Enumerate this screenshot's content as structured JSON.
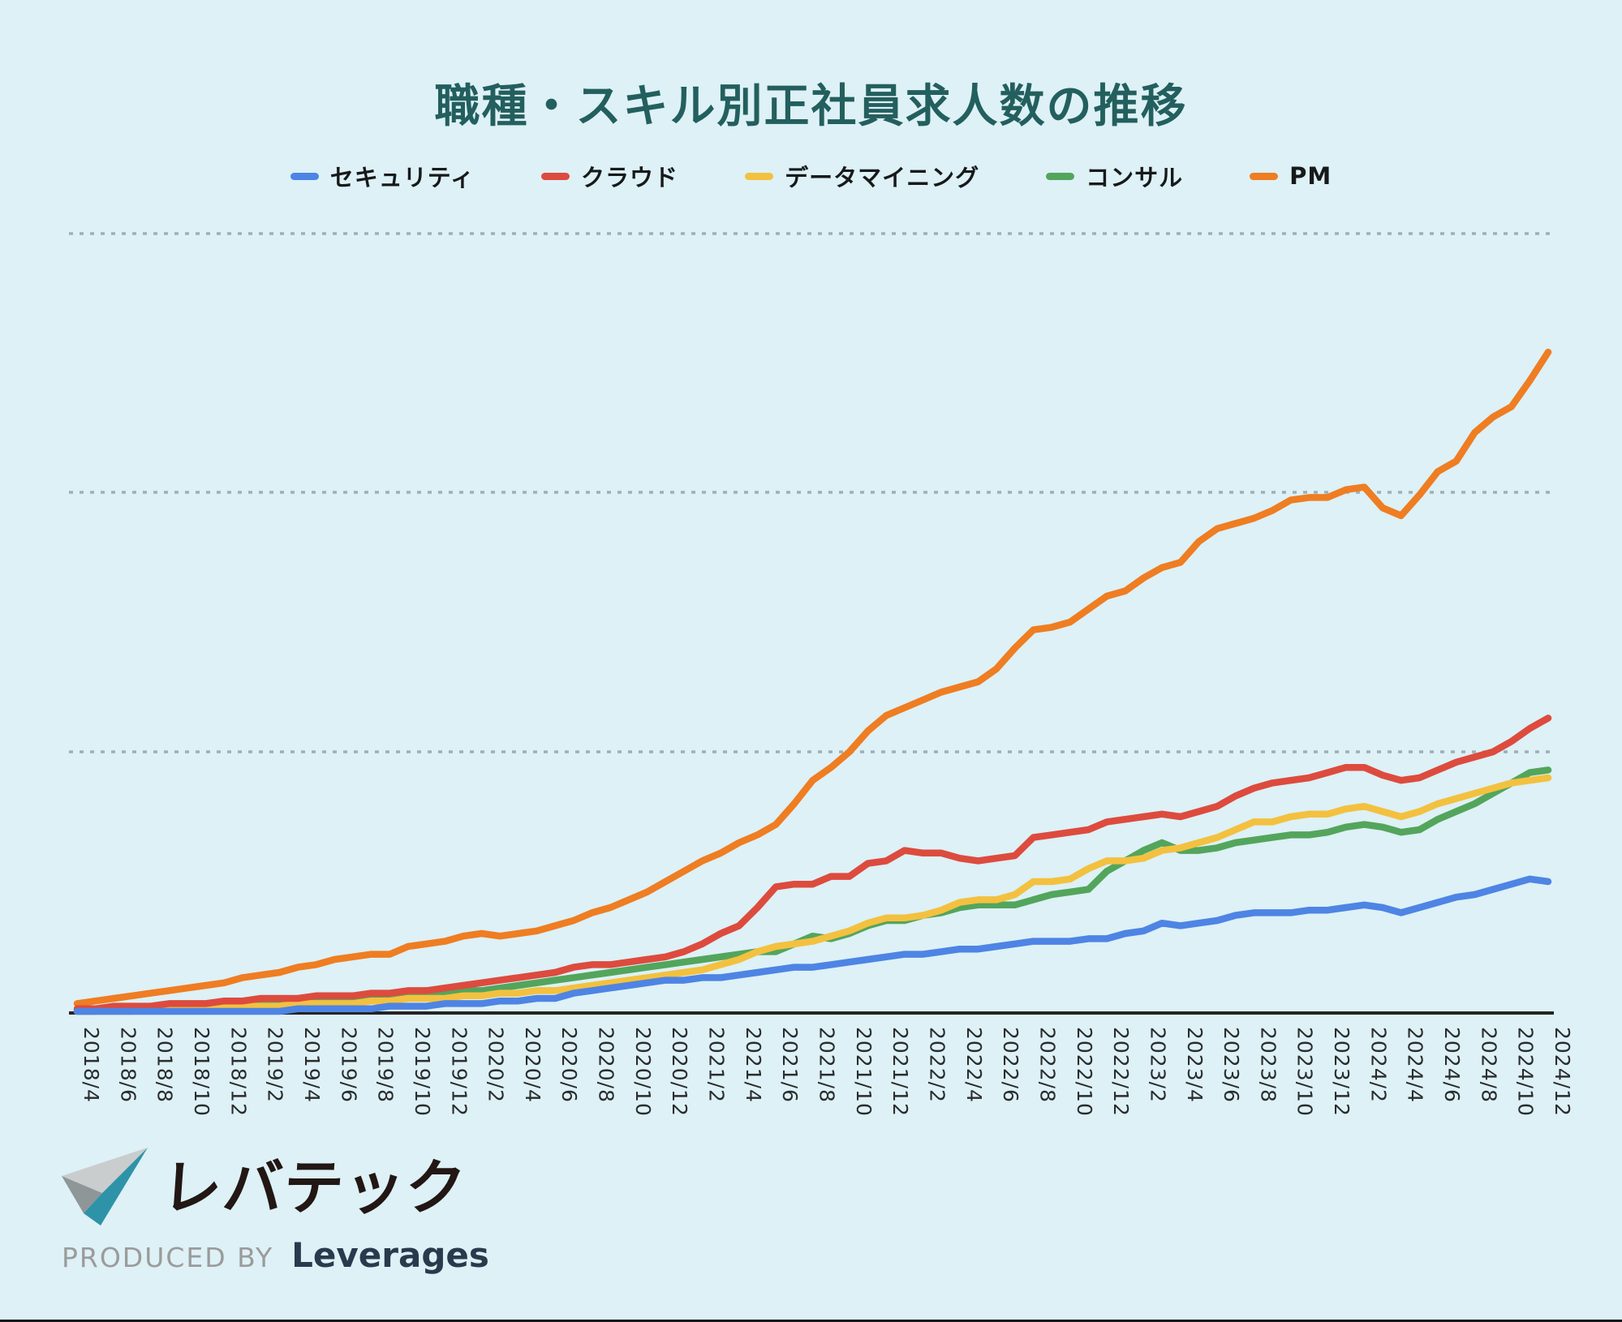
{
  "page": {
    "background": "#ddf1f6"
  },
  "title": {
    "text": "職種・スキル別正社員求人数の推移",
    "color": "#235f5e"
  },
  "legend": {
    "items": [
      {
        "key": "security",
        "label": "セキュリティ",
        "color": "#4e84e4"
      },
      {
        "key": "cloud",
        "label": "クラウド",
        "color": "#dd4b3e"
      },
      {
        "key": "data-mining",
        "label": "データマイニング",
        "color": "#f3c13f"
      },
      {
        "key": "consulting",
        "label": "コンサル",
        "color": "#53a55c"
      },
      {
        "key": "pm",
        "label": "PM",
        "color": "#ef7d22"
      }
    ]
  },
  "chart_data": {
    "type": "line",
    "title": "職種・スキル別正社員求人数の推移",
    "legend_position": "top",
    "grid": {
      "horizontal_dotted": true,
      "dotted_color": "#9fb0b4",
      "baseline_color": "#242424"
    },
    "x_axis": {
      "tick_labels": [
        "2018/4",
        "2018/6",
        "2018/8",
        "2018/10",
        "2018/12",
        "2019/2",
        "2019/4",
        "2019/6",
        "2019/8",
        "2019/10",
        "2019/12",
        "2020/2",
        "2020/4",
        "2020/6",
        "2020/8",
        "2020/10",
        "2020/12",
        "2021/2",
        "2021/4",
        "2021/6",
        "2021/8",
        "2021/10",
        "2021/12",
        "2022/2",
        "2022/4",
        "2022/6",
        "2022/8",
        "2022/10",
        "2022/12",
        "2023/2",
        "2023/4",
        "2023/6",
        "2023/8",
        "2023/10",
        "2023/12",
        "2024/2",
        "2024/4",
        "2024/6",
        "2024/8",
        "2024/10",
        "2024/12"
      ],
      "months_per_tick": 2,
      "label_rotation_deg": 90
    },
    "y_axis": {
      "numeric_labels_visible": false,
      "note": "relative scale estimated from pixels; baseline = 0, dotted gridlines at 1, 2, 3",
      "gridline_values": [
        1,
        2,
        3
      ],
      "ylim": [
        0,
        3.35
      ]
    },
    "sampling": "monthly from 2018/4 to 2024/12 (81 points, 2 points per x tick)",
    "series": [
      {
        "key": "security",
        "name": "セキュリティ",
        "color": "#4e84e4",
        "values": [
          0.0,
          0.0,
          0.0,
          0.0,
          0.0,
          0.0,
          0.0,
          0.0,
          0.0,
          0.0,
          0.0,
          0.0,
          0.01,
          0.01,
          0.01,
          0.01,
          0.01,
          0.02,
          0.02,
          0.02,
          0.03,
          0.03,
          0.03,
          0.04,
          0.04,
          0.05,
          0.05,
          0.07,
          0.08,
          0.09,
          0.1,
          0.11,
          0.12,
          0.12,
          0.13,
          0.13,
          0.14,
          0.15,
          0.16,
          0.17,
          0.17,
          0.18,
          0.19,
          0.2,
          0.21,
          0.22,
          0.22,
          0.23,
          0.24,
          0.24,
          0.25,
          0.26,
          0.27,
          0.27,
          0.27,
          0.28,
          0.28,
          0.3,
          0.31,
          0.34,
          0.33,
          0.34,
          0.35,
          0.37,
          0.38,
          0.38,
          0.38,
          0.39,
          0.39,
          0.4,
          0.41,
          0.4,
          0.38,
          0.4,
          0.42,
          0.44,
          0.45,
          0.47,
          0.49,
          0.51,
          0.5
        ]
      },
      {
        "key": "cloud",
        "name": "クラウド",
        "color": "#dd4b3e",
        "values": [
          0.01,
          0.01,
          0.02,
          0.02,
          0.02,
          0.03,
          0.03,
          0.03,
          0.04,
          0.04,
          0.05,
          0.05,
          0.05,
          0.06,
          0.06,
          0.06,
          0.07,
          0.07,
          0.08,
          0.08,
          0.09,
          0.1,
          0.11,
          0.12,
          0.13,
          0.14,
          0.15,
          0.17,
          0.18,
          0.18,
          0.19,
          0.2,
          0.21,
          0.23,
          0.26,
          0.3,
          0.33,
          0.4,
          0.48,
          0.49,
          0.49,
          0.52,
          0.52,
          0.57,
          0.58,
          0.62,
          0.61,
          0.61,
          0.59,
          0.58,
          0.59,
          0.6,
          0.67,
          0.68,
          0.69,
          0.7,
          0.73,
          0.74,
          0.75,
          0.76,
          0.75,
          0.77,
          0.79,
          0.83,
          0.86,
          0.88,
          0.89,
          0.9,
          0.92,
          0.94,
          0.94,
          0.91,
          0.89,
          0.9,
          0.93,
          0.96,
          0.98,
          1.0,
          1.04,
          1.09,
          1.13
        ]
      },
      {
        "key": "data-mining",
        "name": "データマイニング",
        "color": "#f3c13f",
        "values": [
          0.0,
          0.0,
          0.0,
          0.0,
          0.01,
          0.01,
          0.01,
          0.01,
          0.02,
          0.02,
          0.02,
          0.02,
          0.03,
          0.03,
          0.03,
          0.03,
          0.04,
          0.04,
          0.05,
          0.05,
          0.05,
          0.06,
          0.06,
          0.07,
          0.07,
          0.08,
          0.08,
          0.09,
          0.1,
          0.11,
          0.12,
          0.13,
          0.14,
          0.15,
          0.16,
          0.18,
          0.2,
          0.23,
          0.25,
          0.26,
          0.27,
          0.29,
          0.31,
          0.34,
          0.36,
          0.36,
          0.37,
          0.39,
          0.42,
          0.43,
          0.43,
          0.45,
          0.5,
          0.5,
          0.51,
          0.55,
          0.58,
          0.58,
          0.59,
          0.62,
          0.63,
          0.65,
          0.67,
          0.7,
          0.73,
          0.73,
          0.75,
          0.76,
          0.76,
          0.78,
          0.79,
          0.77,
          0.75,
          0.77,
          0.8,
          0.82,
          0.84,
          0.86,
          0.88,
          0.89,
          0.9
        ]
      },
      {
        "key": "consulting",
        "name": "コンサル",
        "color": "#53a55c",
        "values": [
          0.0,
          0.0,
          0.01,
          0.01,
          0.01,
          0.02,
          0.02,
          0.02,
          0.03,
          0.03,
          0.03,
          0.04,
          0.04,
          0.05,
          0.05,
          0.05,
          0.06,
          0.06,
          0.06,
          0.07,
          0.07,
          0.08,
          0.08,
          0.09,
          0.1,
          0.11,
          0.12,
          0.13,
          0.14,
          0.15,
          0.16,
          0.17,
          0.18,
          0.19,
          0.2,
          0.21,
          0.22,
          0.23,
          0.23,
          0.26,
          0.29,
          0.28,
          0.3,
          0.33,
          0.35,
          0.35,
          0.37,
          0.38,
          0.4,
          0.41,
          0.41,
          0.41,
          0.43,
          0.45,
          0.46,
          0.47,
          0.54,
          0.58,
          0.62,
          0.65,
          0.62,
          0.62,
          0.63,
          0.65,
          0.66,
          0.67,
          0.68,
          0.68,
          0.69,
          0.71,
          0.72,
          0.71,
          0.69,
          0.7,
          0.74,
          0.77,
          0.8,
          0.84,
          0.88,
          0.92,
          0.93
        ]
      },
      {
        "key": "pm",
        "name": "PM",
        "color": "#ef7d22",
        "values": [
          0.03,
          0.04,
          0.05,
          0.06,
          0.07,
          0.08,
          0.09,
          0.1,
          0.11,
          0.13,
          0.14,
          0.15,
          0.17,
          0.18,
          0.2,
          0.21,
          0.22,
          0.22,
          0.25,
          0.26,
          0.27,
          0.29,
          0.3,
          0.29,
          0.3,
          0.31,
          0.33,
          0.35,
          0.38,
          0.4,
          0.43,
          0.46,
          0.5,
          0.54,
          0.58,
          0.61,
          0.65,
          0.68,
          0.72,
          0.8,
          0.89,
          0.94,
          1.0,
          1.08,
          1.14,
          1.17,
          1.2,
          1.23,
          1.25,
          1.27,
          1.32,
          1.4,
          1.47,
          1.48,
          1.5,
          1.55,
          1.6,
          1.62,
          1.67,
          1.71,
          1.73,
          1.81,
          1.86,
          1.88,
          1.9,
          1.93,
          1.97,
          1.98,
          1.98,
          2.01,
          2.02,
          1.94,
          1.91,
          1.99,
          2.08,
          2.12,
          2.23,
          2.29,
          2.33,
          2.43,
          2.54
        ]
      }
    ]
  },
  "footer": {
    "logo_text": "レバテック",
    "produced_by": "PRODUCED BY",
    "company": "Leverages",
    "logo_colors": {
      "text": "#221714",
      "produced_by": "#9b9b9b",
      "company": "#293a4d",
      "mark_teal": "#2e93a8",
      "mark_light_gray": "#c9cdcd",
      "mark_mid_gray": "#8f9697"
    }
  }
}
